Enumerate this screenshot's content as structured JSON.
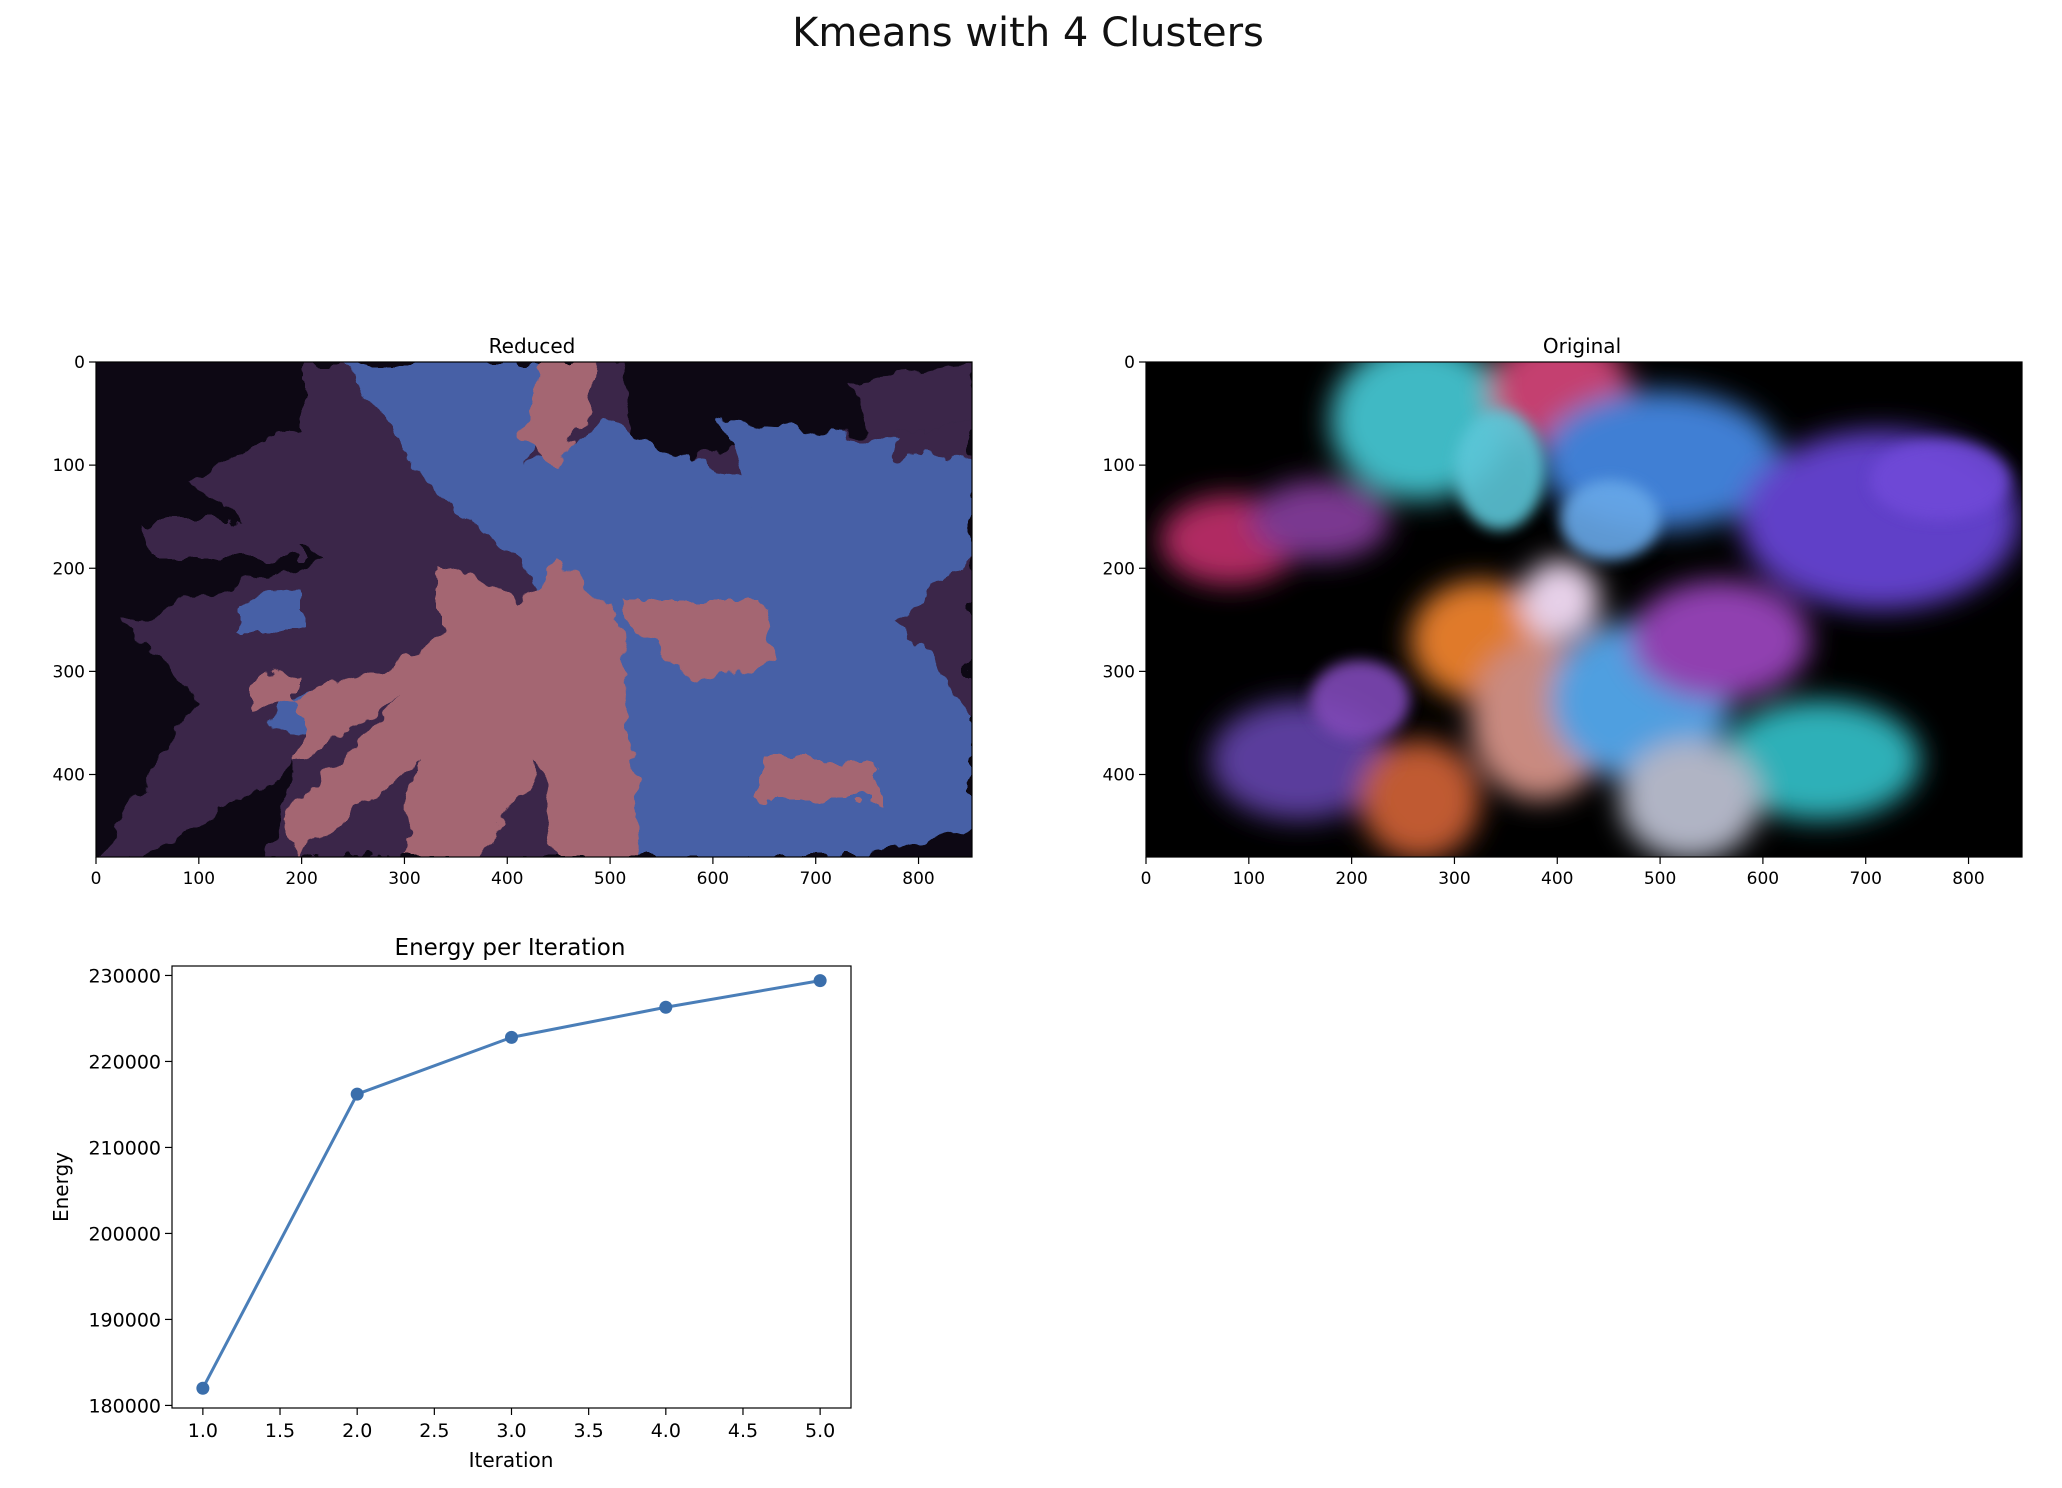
{
  "figure": {
    "suptitle": "Kmeans with 4 Clusters"
  },
  "colors": {
    "line": "#4a7eb8",
    "marker": "#3a6eab",
    "reduced_background": "#0d0814",
    "reduced_cluster_dark": "#3a2848",
    "reduced_cluster_pink": "#a46672",
    "reduced_cluster_blue": "#4760a6"
  },
  "panels": {
    "reduced": {
      "title": "Reduced",
      "xticks": [
        "0",
        "100",
        "200",
        "300",
        "400",
        "500",
        "600",
        "700",
        "800"
      ],
      "yticks": [
        "0",
        "100",
        "200",
        "300",
        "400"
      ],
      "xlim": [
        0,
        852
      ],
      "ylim": [
        0,
        480
      ]
    },
    "original": {
      "title": "Original",
      "xticks": [
        "0",
        "100",
        "200",
        "300",
        "400",
        "500",
        "600",
        "700",
        "800"
      ],
      "yticks": [
        "0",
        "100",
        "200",
        "300",
        "400"
      ],
      "xlim": [
        0,
        852
      ],
      "ylim": [
        0,
        480
      ]
    }
  },
  "chart_data": {
    "type": "line",
    "title": "Energy per Iteration",
    "xlabel": "Iteration",
    "ylabel": "Energy",
    "x": [
      1.0,
      2.0,
      3.0,
      4.0,
      5.0
    ],
    "series": [
      {
        "values": [
          182000,
          216200,
          222800,
          226300,
          229400
        ]
      }
    ],
    "xlim": [
      0.8,
      5.2
    ],
    "ylim": [
      179700,
      231100
    ],
    "xticks": [
      "1.0",
      "1.5",
      "2.0",
      "2.5",
      "3.0",
      "3.5",
      "4.0",
      "4.5",
      "5.0"
    ],
    "yticks": [
      "180000",
      "190000",
      "200000",
      "210000",
      "220000",
      "230000"
    ],
    "grid": false,
    "markers": true
  }
}
